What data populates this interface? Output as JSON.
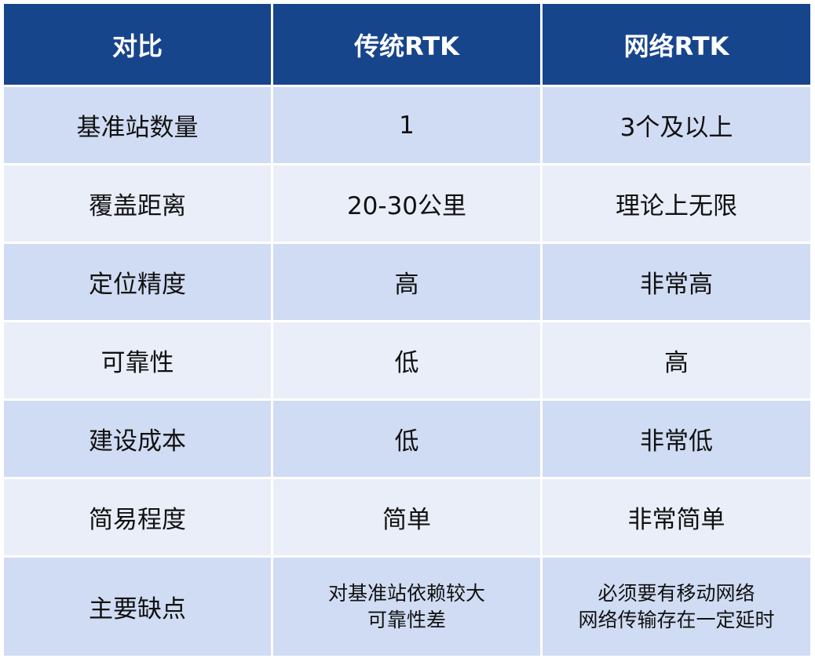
{
  "header": [
    "对比",
    "传统RTK",
    "网络RTK"
  ],
  "rows": [
    [
      "基准站数量",
      "1",
      "3个及以上"
    ],
    [
      "覆盖距离",
      "20-30公里",
      "理论上无限"
    ],
    [
      "定位精度",
      "高",
      "非常高"
    ],
    [
      "可靠性",
      "低",
      "高"
    ],
    [
      "建设成本",
      "低",
      "非常低"
    ],
    [
      "简易程度",
      "简单",
      "非常简单"
    ]
  ],
  "last_row": {
    "label": "主要缺点",
    "traditional": [
      "对基准站依赖较大",
      "可靠性差"
    ],
    "network": [
      "必须要有移动网络",
      "网络传输存在一定延时"
    ]
  },
  "colors": {
    "header": "#17458c",
    "row_odd": "#d0dcf3",
    "row_even": "#e9eef9"
  }
}
